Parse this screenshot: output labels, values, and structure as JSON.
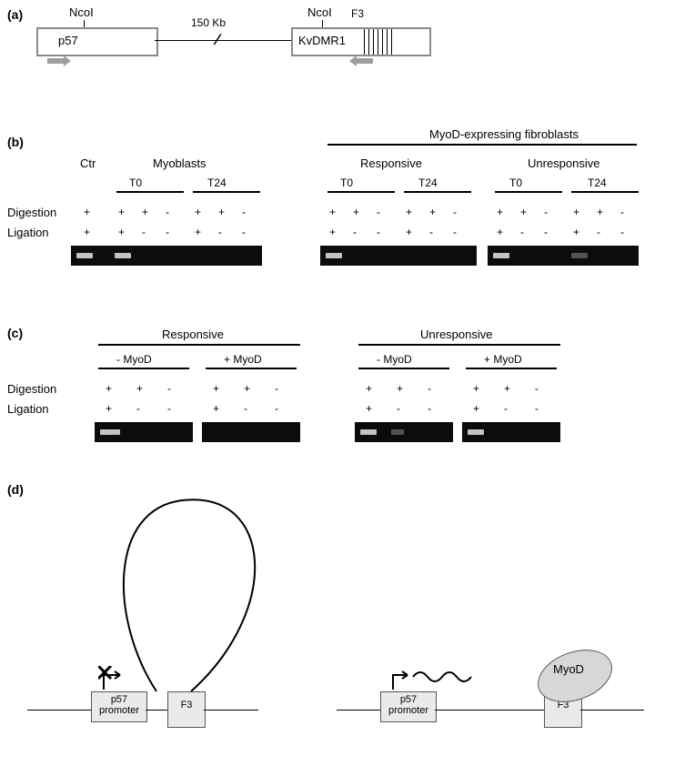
{
  "panelA": {
    "label": "(a)",
    "p57_label": "p57",
    "kvdmr_label": "KvDMR1",
    "f3_label": "F3",
    "distance_label": "150 Kb",
    "nco_left": "NcoI",
    "nco_right": "NcoI"
  },
  "panelB": {
    "label": "(b)",
    "header_myod": "MyoD-expressing fibroblasts",
    "ctr": "Ctr",
    "myoblasts": "Myoblasts",
    "responsive": "Responsive",
    "unresponsive": "Unresponsive",
    "t0": "T0",
    "t24": "T24",
    "digestion": "Digestion",
    "ligation": "Ligation",
    "signs": [
      "+",
      "-"
    ]
  },
  "panelC": {
    "label": "(c)",
    "responsive": "Responsive",
    "unresponsive": "Unresponsive",
    "minus_myod": "- MyoD",
    "plus_myod": "+ MyoD",
    "digestion": "Digestion",
    "ligation": "Ligation"
  },
  "panelD": {
    "label": "(d)",
    "p57_promoter": "p57\npromoter",
    "f3": "F3",
    "myod_label": "MyoD"
  }
}
